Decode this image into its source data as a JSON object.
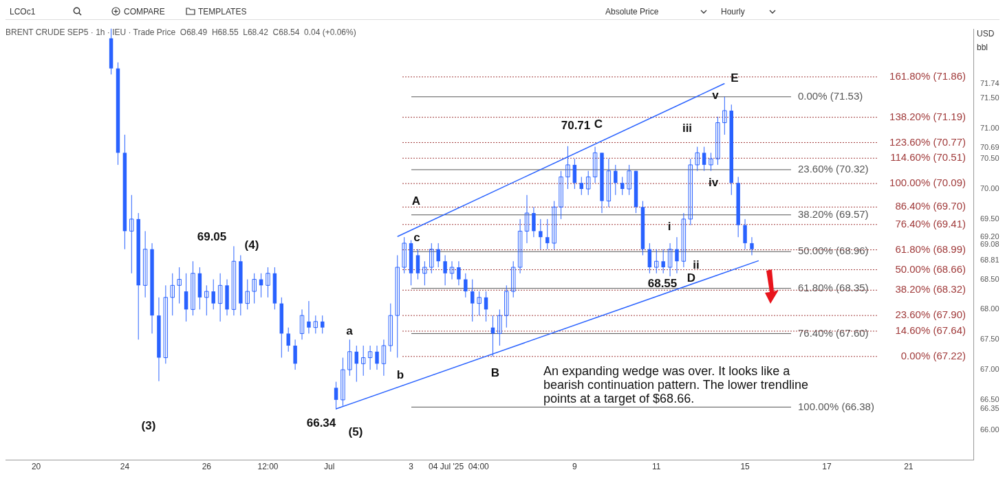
{
  "chart_data": {
    "type": "candlestick",
    "title": "BRENT CRUDE SEP5 · 1h · IEU · Trade Price  O68.49  H68.55  L68.42  C68.54  0.04 (+0.06%)",
    "color": "#2962ff",
    "categories": [
      null,
      null,
      null,
      null,
      "20",
      null,
      null,
      null,
      null,
      null,
      null,
      null,
      null,
      null,
      null,
      null,
      null,
      "24",
      null,
      null,
      null,
      null,
      null,
      null,
      null,
      null,
      null,
      null,
      null,
      "26",
      null,
      null,
      null,
      null,
      null,
      null,
      null,
      null,
      "12:00",
      null,
      null,
      null,
      null,
      null,
      null,
      null,
      null,
      "Jul",
      null,
      null,
      null,
      null,
      null,
      null,
      null,
      null,
      null,
      null,
      null,
      "3",
      null,
      null,
      null,
      null,
      null,
      null,
      "04 Jul '25  04:00",
      null,
      null,
      null,
      null,
      null,
      null,
      null,
      null,
      null,
      null,
      null,
      null,
      null,
      null,
      null,
      null,
      "9",
      null,
      null,
      null,
      null,
      null,
      null,
      null,
      null,
      null,
      null,
      null,
      "11",
      null,
      null,
      null,
      null,
      null,
      null,
      null,
      null,
      null,
      null,
      null,
      null,
      "15",
      null,
      null,
      null,
      null,
      null,
      null,
      null,
      null,
      null,
      null,
      null,
      "17",
      null,
      null,
      null,
      null,
      null,
      null,
      null,
      null,
      null,
      null,
      null,
      "21",
      null,
      null,
      null,
      null,
      null,
      null,
      null,
      null,
      null
    ],
    "ohlc": [
      null,
      null,
      null,
      null,
      null,
      null,
      null,
      null,
      null,
      null,
      null,
      null,
      null,
      null,
      null,
      [
        72.5,
        72.66,
        71.9,
        72.0
      ],
      [
        72.0,
        72.1,
        70.4,
        70.6
      ],
      [
        70.6,
        70.9,
        69.0,
        69.3
      ],
      [
        69.3,
        69.9,
        68.6,
        69.5
      ],
      [
        69.5,
        69.6,
        67.5,
        68.4
      ],
      [
        68.4,
        69.3,
        68.2,
        69.0
      ],
      [
        69.0,
        69.1,
        67.6,
        67.9
      ],
      [
        67.9,
        68.2,
        66.81,
        67.2
      ],
      [
        67.2,
        68.4,
        67.1,
        68.2
      ],
      [
        68.2,
        68.6,
        67.9,
        68.4
      ],
      [
        68.4,
        68.7,
        68.1,
        68.5
      ],
      [
        68.3,
        68.6,
        67.8,
        68.0
      ],
      [
        68.0,
        68.8,
        67.9,
        68.6
      ],
      [
        68.6,
        68.7,
        68.0,
        68.2
      ],
      [
        68.2,
        68.4,
        67.9,
        68.3
      ],
      [
        68.3,
        68.5,
        68.0,
        68.1
      ],
      [
        68.1,
        68.6,
        67.8,
        68.4
      ],
      [
        68.4,
        68.5,
        67.9,
        68.0
      ],
      [
        68.0,
        69.05,
        67.9,
        68.8
      ],
      [
        68.8,
        68.9,
        67.9,
        68.1
      ],
      [
        68.1,
        68.5,
        68.0,
        68.3
      ],
      [
        68.3,
        68.6,
        68.1,
        68.5
      ],
      [
        68.5,
        68.6,
        68.2,
        68.4
      ],
      [
        68.4,
        68.7,
        68.2,
        68.6
      ],
      [
        68.6,
        68.7,
        68.0,
        68.1
      ],
      [
        68.1,
        68.2,
        67.2,
        67.6
      ],
      [
        67.6,
        67.7,
        67.3,
        67.4
      ],
      [
        67.4,
        67.5,
        67.0,
        67.1
      ],
      [
        67.6,
        68.0,
        67.5,
        67.9
      ],
      [
        67.8,
        68.14,
        67.6,
        67.7
      ],
      [
        67.7,
        67.9,
        67.6,
        67.8
      ],
      [
        67.8,
        67.9,
        67.6,
        67.7
      ],
      null,
      [
        66.7,
        66.8,
        66.34,
        66.5
      ],
      [
        66.5,
        67.2,
        66.4,
        67.0
      ],
      [
        67.0,
        67.5,
        66.9,
        67.3
      ],
      [
        67.3,
        67.4,
        66.8,
        67.1
      ],
      [
        67.1,
        67.4,
        66.9,
        67.2
      ],
      [
        67.2,
        67.4,
        67.0,
        67.3
      ],
      [
        67.3,
        67.4,
        67.0,
        67.1
      ],
      [
        67.1,
        67.5,
        66.9,
        67.4
      ],
      [
        67.4,
        68.1,
        67.3,
        67.9
      ],
      [
        67.9,
        68.9,
        67.2,
        68.7
      ],
      [
        68.7,
        69.2,
        68.6,
        69.1
      ],
      [
        69.1,
        69.15,
        68.4,
        68.6
      ],
      [
        68.9,
        69.0,
        68.5,
        68.6
      ],
      [
        68.6,
        68.8,
        68.4,
        68.7
      ],
      [
        68.7,
        69.1,
        68.6,
        69.0
      ],
      [
        69.0,
        69.1,
        68.7,
        68.8
      ],
      [
        68.8,
        68.9,
        68.4,
        68.6
      ],
      [
        68.6,
        68.8,
        68.5,
        68.7
      ],
      [
        68.7,
        68.8,
        68.4,
        68.5
      ],
      [
        68.5,
        68.6,
        68.2,
        68.3
      ],
      [
        68.3,
        68.5,
        67.8,
        68.1
      ],
      [
        68.1,
        68.3,
        67.9,
        68.2
      ],
      [
        68.2,
        68.3,
        67.8,
        68.0
      ],
      [
        67.7,
        67.9,
        67.22,
        67.6
      ],
      [
        67.6,
        68.0,
        67.4,
        67.9
      ],
      [
        67.9,
        68.4,
        67.7,
        68.3
      ],
      [
        68.3,
        68.8,
        68.2,
        68.7
      ],
      [
        68.7,
        69.5,
        68.6,
        69.3
      ],
      [
        69.3,
        69.9,
        69.1,
        69.6
      ],
      [
        69.6,
        69.7,
        69.2,
        69.3
      ],
      [
        69.3,
        69.5,
        69.0,
        69.2
      ],
      [
        69.2,
        69.5,
        69.0,
        69.1
      ],
      [
        69.1,
        69.8,
        69.0,
        69.7
      ],
      [
        69.7,
        70.3,
        69.5,
        70.2
      ],
      [
        70.2,
        70.71,
        70.0,
        70.4
      ],
      [
        70.4,
        70.5,
        70.0,
        70.1
      ],
      [
        70.1,
        70.2,
        69.9,
        70.0
      ],
      [
        70.0,
        70.3,
        69.9,
        70.2
      ],
      [
        70.2,
        70.7,
        70.1,
        70.6
      ],
      [
        70.6,
        70.6,
        69.6,
        69.8
      ],
      [
        69.8,
        70.5,
        69.7,
        70.3
      ],
      [
        70.3,
        70.4,
        69.9,
        70.1
      ],
      [
        70.1,
        70.2,
        69.9,
        70.0
      ],
      [
        70.0,
        70.4,
        69.9,
        70.3
      ],
      [
        70.3,
        70.3,
        69.6,
        69.7
      ],
      [
        69.7,
        69.8,
        68.9,
        69.0
      ],
      [
        69.0,
        69.1,
        68.6,
        68.7
      ],
      [
        68.7,
        69.0,
        68.6,
        68.8
      ],
      [
        68.8,
        69.0,
        68.6,
        68.7
      ],
      [
        68.7,
        69.1,
        68.55,
        69.0
      ],
      [
        69.0,
        69.2,
        68.6,
        68.8
      ],
      [
        68.8,
        69.6,
        68.7,
        69.5
      ],
      [
        69.5,
        70.5,
        69.4,
        70.4
      ],
      [
        70.4,
        70.7,
        70.3,
        70.6
      ],
      [
        70.6,
        70.7,
        70.3,
        70.4
      ],
      [
        70.4,
        70.6,
        70.3,
        70.5
      ],
      [
        70.5,
        71.2,
        70.4,
        71.1
      ],
      [
        71.1,
        71.53,
        70.9,
        71.3
      ],
      [
        71.3,
        71.4,
        69.9,
        70.1
      ],
      [
        70.1,
        70.2,
        69.2,
        69.4
      ],
      [
        69.4,
        69.5,
        69.0,
        69.1
      ],
      [
        69.1,
        69.2,
        68.9,
        69.0
      ],
      null,
      null,
      null,
      null,
      null,
      null,
      null,
      null,
      null,
      null,
      null,
      null,
      null,
      null,
      null,
      null,
      null,
      null,
      null,
      null,
      null,
      null,
      null,
      null,
      null,
      null,
      null,
      null,
      null,
      null,
      null,
      null
    ],
    "series": [
      {
        "type": "line",
        "color": "#2962ff",
        "values": [
          null,
          null,
          null,
          null,
          null,
          null,
          null,
          null,
          null,
          null,
          null,
          null,
          null,
          null,
          null,
          null,
          null,
          null,
          null,
          null,
          null,
          null,
          null,
          null,
          null,
          null,
          null,
          null,
          null,
          null,
          null,
          null,
          null,
          null,
          null,
          null,
          null,
          null,
          null,
          null,
          null,
          null,
          null,
          null,
          null,
          null,
          null,
          null,
          null,
          null,
          null,
          null,
          null,
          null,
          null,
          null,
          null,
          69.21,
          null,
          null,
          null,
          null,
          null,
          null,
          null,
          null,
          null,
          null,
          null,
          null,
          null,
          null,
          null,
          null,
          null,
          null,
          null,
          null,
          null,
          null,
          null,
          null,
          null,
          null,
          null,
          null,
          null,
          null,
          null,
          null,
          null,
          null,
          null,
          null,
          null,
          null,
          null,
          null,
          null,
          null,
          null,
          null,
          null,
          null,
          null,
          71.75,
          null,
          null,
          null,
          null,
          null,
          null,
          null,
          null,
          null,
          null,
          null,
          null,
          null,
          null,
          null,
          null,
          null,
          null,
          null,
          null,
          null,
          null,
          null,
          null,
          null,
          null,
          null,
          null,
          null,
          null,
          null,
          null,
          null,
          null,
          null,
          null
        ]
      },
      {
        "type": "line",
        "color": "#2962ff",
        "values": [
          null,
          null,
          null,
          null,
          null,
          null,
          null,
          null,
          null,
          null,
          null,
          null,
          null,
          null,
          null,
          null,
          null,
          null,
          null,
          null,
          null,
          null,
          null,
          null,
          null,
          null,
          null,
          null,
          null,
          null,
          null,
          null,
          null,
          null,
          null,
          null,
          null,
          null,
          null,
          null,
          null,
          null,
          null,
          null,
          null,
          null,
          null,
          null,
          66.35,
          null,
          null,
          null,
          null,
          null,
          null,
          null,
          null,
          null,
          null,
          null,
          null,
          null,
          null,
          null,
          null,
          null,
          null,
          null,
          null,
          null,
          null,
          null,
          null,
          null,
          null,
          null,
          null,
          null,
          null,
          null,
          null,
          null,
          null,
          null,
          null,
          null,
          null,
          null,
          null,
          null,
          null,
          null,
          null,
          null,
          null,
          null,
          null,
          null,
          null,
          null,
          null,
          null,
          null,
          null,
          null,
          null,
          null,
          null,
          null,
          null,
          68.81,
          null,
          null,
          null,
          null,
          null,
          null,
          null,
          null,
          null,
          null,
          null,
          null,
          null,
          null,
          null,
          null,
          null,
          null,
          null,
          null,
          null,
          null,
          null,
          null,
          null,
          null,
          null,
          null,
          null,
          null,
          null
        ]
      }
    ],
    "ylim": [
      65.5,
      72.65
    ],
    "yticks": [
      {
        "value": 66,
        "label": "66.00"
      },
      {
        "value": 66.35,
        "label": "66.35"
      },
      {
        "value": 66.5,
        "label": "66.50"
      },
      {
        "value": 67,
        "label": "67.00"
      },
      {
        "value": 67.5,
        "label": "67.50"
      },
      {
        "value": 68,
        "label": "68.00"
      },
      {
        "value": 68.5,
        "label": "68.50"
      },
      {
        "value": 68.81,
        "label": "68.81"
      },
      {
        "value": 69.08,
        "label": "69.08"
      },
      {
        "value": 69.2,
        "label": "69.20"
      },
      {
        "value": 69.5,
        "label": "69.50"
      },
      {
        "value": 70,
        "label": "70.00"
      },
      {
        "value": 70.5,
        "label": "70.50"
      },
      {
        "value": 70.69,
        "label": "70.69"
      },
      {
        "value": 71,
        "label": "71.00"
      },
      {
        "value": 71.5,
        "label": "71.50"
      },
      {
        "value": 71.74,
        "label": "71.74"
      }
    ],
    "ref_lines": [
      {
        "axis": "y",
        "value": 71.53,
        "label": "0.00% (71.53)",
        "color": "#555555",
        "line_style": "solid"
      },
      {
        "axis": "y",
        "value": 70.32,
        "label": "23.60% (70.32)",
        "color": "#555555",
        "line_style": "solid"
      },
      {
        "axis": "y",
        "value": 69.57,
        "label": "38.20% (69.57)",
        "color": "#555555",
        "line_style": "solid"
      },
      {
        "axis": "y",
        "value": 68.96,
        "label": "50.00% (68.96)",
        "color": "#555555",
        "line_style": "solid"
      },
      {
        "axis": "y",
        "value": 68.35,
        "label": "61.80% (68.35)",
        "color": "#555555",
        "line_style": "solid"
      },
      {
        "axis": "y",
        "value": 67.6,
        "label": "76.40% (67.60)",
        "color": "#555555",
        "line_style": "solid"
      },
      {
        "axis": "y",
        "value": 66.38,
        "label": "100.00% (66.38)",
        "color": "#555555",
        "line_style": "solid"
      },
      {
        "axis": "y",
        "value": 71.86,
        "label": "161.80% (71.86)",
        "color": "#a03a3a",
        "line_style": "dotted"
      },
      {
        "axis": "y",
        "value": 71.19,
        "label": "138.20% (71.19)",
        "color": "#a03a3a",
        "line_style": "dotted"
      },
      {
        "axis": "y",
        "value": 70.77,
        "label": "123.60% (70.77)",
        "color": "#a03a3a",
        "line_style": "dotted"
      },
      {
        "axis": "y",
        "value": 70.51,
        "label": "114.60% (70.51)",
        "color": "#a03a3a",
        "line_style": "dotted"
      },
      {
        "axis": "y",
        "value": 70.09,
        "label": "100.00% (70.09)",
        "color": "#a03a3a",
        "line_style": "dotted"
      },
      {
        "axis": "y",
        "value": 69.7,
        "label": "86.40% (69.70)",
        "color": "#a03a3a",
        "line_style": "dotted"
      },
      {
        "axis": "y",
        "value": 69.41,
        "label": "76.40% (69.41)",
        "color": "#a03a3a",
        "line_style": "dotted"
      },
      {
        "axis": "y",
        "value": 68.99,
        "label": "61.80% (68.99)",
        "color": "#a03a3a",
        "line_style": "dotted"
      },
      {
        "axis": "y",
        "value": 68.66,
        "label": "50.00% (68.66)",
        "color": "#a03a3a",
        "line_style": "dotted"
      },
      {
        "axis": "y",
        "value": 68.32,
        "label": "38.20% (68.32)",
        "color": "#a03a3a",
        "line_style": "dotted"
      },
      {
        "axis": "y",
        "value": 67.9,
        "label": "23.60% (67.90)",
        "color": "#a03a3a",
        "line_style": "dotted"
      },
      {
        "axis": "y",
        "value": 67.64,
        "label": "14.60% (67.64)",
        "color": "#a03a3a",
        "line_style": "dotted"
      },
      {
        "axis": "y",
        "value": 67.22,
        "label": "0.00% (67.22)",
        "color": "#a03a3a",
        "line_style": "dotted"
      }
    ],
    "annotations": [
      "LCOc1",
      "COMPARE",
      "TEMPLATES",
      "Absolute Price",
      "Hourly",
      "USD",
      "bbl",
      "An expanding wedge was over. It looks like a bearish continuation pattern. The lower trendline points at a target of $68.66.",
      "69.05",
      "(4)",
      "(3)",
      "66.34",
      "(5)",
      "a",
      "b",
      "c",
      "A",
      "B",
      "70.71",
      "C",
      "iii",
      "i",
      "ii",
      "D",
      "68.55",
      "iv",
      "v",
      "E"
    ]
  }
}
